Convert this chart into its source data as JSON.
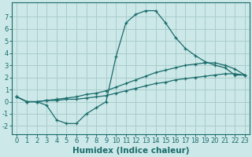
{
  "bg_color": "#cce8e8",
  "grid_color": "#aacccc",
  "line_color": "#1a6b6b",
  "marker": "+",
  "xlabel": "Humidex (Indice chaleur)",
  "xlabel_fontsize": 7.5,
  "tick_fontsize": 6,
  "xlim": [
    -0.5,
    23.5
  ],
  "ylim": [
    -2.7,
    8.2
  ],
  "xticks": [
    0,
    1,
    2,
    3,
    4,
    5,
    6,
    7,
    8,
    9,
    10,
    11,
    12,
    13,
    14,
    15,
    16,
    17,
    18,
    19,
    20,
    21,
    22,
    23
  ],
  "yticks": [
    -2,
    -1,
    0,
    1,
    2,
    3,
    4,
    5,
    6,
    7
  ],
  "series": [
    {
      "x": [
        0,
        1,
        2,
        3,
        4,
        5,
        6,
        7,
        8,
        9,
        10,
        11,
        12,
        13,
        14,
        15,
        16,
        17,
        18,
        19,
        20,
        21,
        22,
        23
      ],
      "y": [
        0.4,
        0.0,
        0.0,
        -0.3,
        -1.5,
        -1.8,
        -1.8,
        -1.0,
        -0.5,
        0.0,
        3.7,
        6.5,
        7.2,
        7.5,
        7.5,
        6.5,
        5.3,
        4.4,
        3.8,
        3.3,
        3.0,
        2.8,
        2.2,
        2.2
      ]
    },
    {
      "x": [
        0,
        1,
        2,
        3,
        4,
        5,
        6,
        7,
        8,
        9,
        10,
        11,
        12,
        13,
        14,
        15,
        16,
        17,
        18,
        19,
        20,
        21,
        22,
        23
      ],
      "y": [
        0.4,
        0.0,
        0.0,
        0.1,
        0.2,
        0.3,
        0.4,
        0.6,
        0.7,
        0.9,
        1.2,
        1.5,
        1.8,
        2.1,
        2.4,
        2.6,
        2.8,
        3.0,
        3.1,
        3.2,
        3.2,
        3.0,
        2.7,
        2.2
      ]
    },
    {
      "x": [
        0,
        1,
        2,
        3,
        4,
        5,
        6,
        7,
        8,
        9,
        10,
        11,
        12,
        13,
        14,
        15,
        16,
        17,
        18,
        19,
        20,
        21,
        22,
        23
      ],
      "y": [
        0.4,
        0.0,
        0.0,
        0.1,
        0.1,
        0.2,
        0.2,
        0.3,
        0.4,
        0.5,
        0.7,
        0.9,
        1.1,
        1.3,
        1.5,
        1.6,
        1.8,
        1.9,
        2.0,
        2.1,
        2.2,
        2.3,
        2.3,
        2.2
      ]
    }
  ]
}
